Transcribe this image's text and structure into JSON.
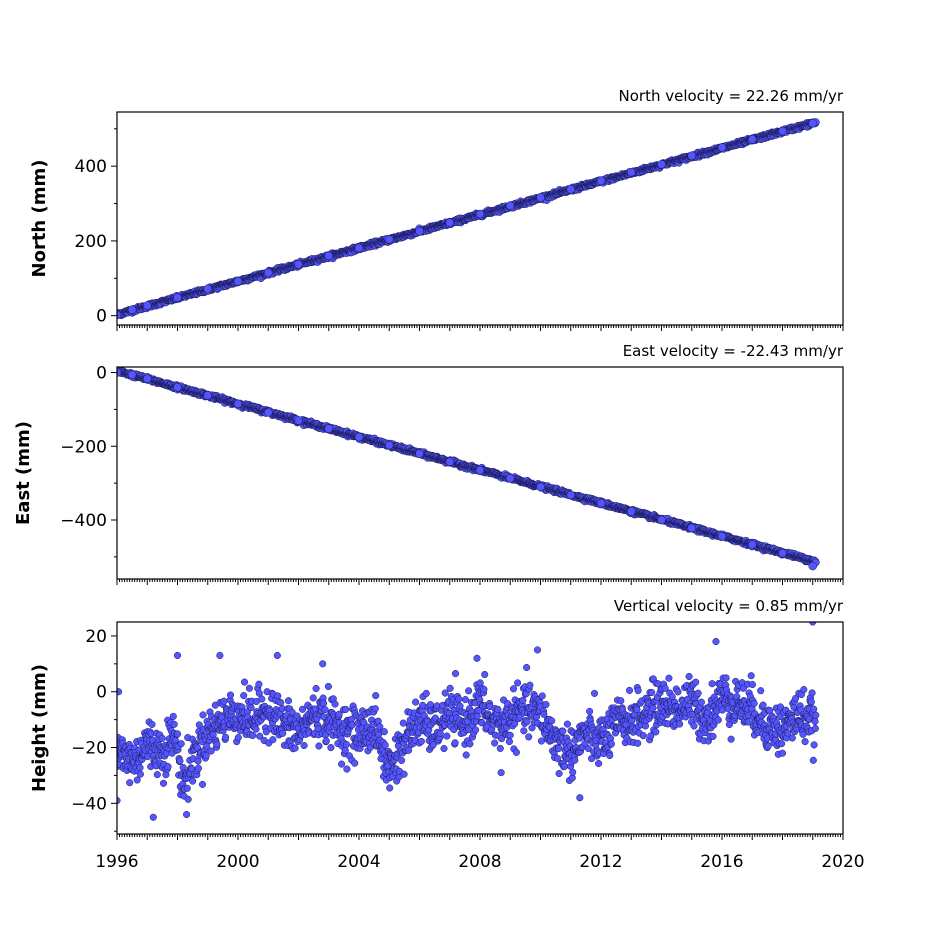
{
  "chart_data": [
    {
      "type": "scatter",
      "title": "North velocity = 22.26 mm/yr",
      "ylabel": "North (mm)",
      "xlim": [
        1996,
        2020
      ],
      "ylim": [
        -25,
        545
      ],
      "yticks": [
        0,
        200,
        400
      ],
      "ytick_labels": [
        "0",
        "200",
        "400"
      ],
      "velocity_mm_per_yr": 22.26,
      "intercept_mm": 3,
      "data_span": [
        1996.0,
        2019.1
      ],
      "noise_mm": 2.5,
      "color": "#5555ff",
      "points": [
        [
          1996.0,
          2
        ],
        [
          1996.5,
          16
        ],
        [
          1997.0,
          27
        ],
        [
          1998.0,
          48
        ],
        [
          1999.0,
          72
        ],
        [
          2000.0,
          92
        ],
        [
          2001.0,
          115
        ],
        [
          2002.0,
          137
        ],
        [
          2003.0,
          160
        ],
        [
          2004.0,
          181
        ],
        [
          2005.0,
          204
        ],
        [
          2006.0,
          226
        ],
        [
          2007.0,
          249
        ],
        [
          2008.0,
          272
        ],
        [
          2009.0,
          294
        ],
        [
          2010.0,
          316
        ],
        [
          2011.0,
          338
        ],
        [
          2012.0,
          361
        ],
        [
          2013.0,
          384
        ],
        [
          2014.0,
          405
        ],
        [
          2015.0,
          428
        ],
        [
          2016.0,
          450
        ],
        [
          2017.0,
          472
        ],
        [
          2018.0,
          494
        ],
        [
          2019.0,
          515
        ]
      ]
    },
    {
      "type": "scatter",
      "title": "East velocity = -22.43 mm/yr",
      "ylabel": "East (mm)",
      "xlim": [
        1996,
        2020
      ],
      "ylim": [
        -560,
        15
      ],
      "yticks": [
        0,
        -200,
        -400
      ],
      "ytick_labels": [
        "0",
        "−200",
        "−400"
      ],
      "velocity_mm_per_yr": -22.43,
      "intercept_mm": 5,
      "data_span": [
        1996.0,
        2019.1
      ],
      "noise_mm": 2.5,
      "color": "#5555ff",
      "points": [
        [
          1996.0,
          0
        ],
        [
          1996.5,
          -6
        ],
        [
          1997.0,
          -17
        ],
        [
          1998.0,
          -40
        ],
        [
          1999.0,
          -62
        ],
        [
          2000.0,
          -85
        ],
        [
          2001.0,
          -108
        ],
        [
          2002.0,
          -130
        ],
        [
          2003.0,
          -152
        ],
        [
          2004.0,
          -175
        ],
        [
          2005.0,
          -197
        ],
        [
          2006.0,
          -220
        ],
        [
          2007.0,
          -242
        ],
        [
          2008.0,
          -265
        ],
        [
          2009.0,
          -287
        ],
        [
          2010.0,
          -310
        ],
        [
          2011.0,
          -332
        ],
        [
          2012.0,
          -354
        ],
        [
          2013.0,
          -377
        ],
        [
          2014.0,
          -400
        ],
        [
          2015.0,
          -422
        ],
        [
          2016.0,
          -444
        ],
        [
          2017.0,
          -467
        ],
        [
          2018.0,
          -490
        ],
        [
          2019.0,
          -525
        ]
      ]
    },
    {
      "type": "scatter",
      "title": "Vertical velocity = 0.85 mm/yr",
      "ylabel": "Height (mm)",
      "xlim": [
        1996,
        2020
      ],
      "ylim": [
        -51,
        25
      ],
      "yticks": [
        20,
        0,
        -20,
        -40
      ],
      "ytick_labels": [
        "20",
        "0",
        "−20",
        "−40"
      ],
      "xticks": [
        1996,
        2000,
        2004,
        2008,
        2012,
        2016,
        2020
      ],
      "xtick_labels": [
        "1996",
        "2000",
        "2004",
        "2008",
        "2012",
        "2016",
        "2020"
      ],
      "velocity_mm_per_yr": 0.85,
      "data_span": [
        1996.0,
        2019.1
      ],
      "noise_mm": 4.5,
      "color": "#5555ff",
      "baseline": [
        [
          1996.0,
          -22
        ],
        [
          1996.6,
          -25
        ],
        [
          1997.0,
          -18
        ],
        [
          1997.5,
          -22
        ],
        [
          1997.9,
          -15
        ],
        [
          1998.2,
          -33
        ],
        [
          1998.6,
          -22
        ],
        [
          1999.0,
          -15
        ],
        [
          1999.5,
          -10
        ],
        [
          2000.0,
          -8
        ],
        [
          2000.5,
          -10
        ],
        [
          2001.0,
          -6
        ],
        [
          2001.5,
          -12
        ],
        [
          2002.0,
          -15
        ],
        [
          2002.5,
          -8
        ],
        [
          2003.0,
          -10
        ],
        [
          2003.5,
          -14
        ],
        [
          2004.0,
          -15
        ],
        [
          2004.5,
          -12
        ],
        [
          2005.0,
          -28
        ],
        [
          2005.4,
          -20
        ],
        [
          2006.0,
          -10
        ],
        [
          2006.5,
          -14
        ],
        [
          2007.0,
          -8
        ],
        [
          2007.5,
          -12
        ],
        [
          2008.0,
          -4
        ],
        [
          2008.5,
          -12
        ],
        [
          2009.0,
          -10
        ],
        [
          2009.5,
          -6
        ],
        [
          2010.0,
          -8
        ],
        [
          2010.5,
          -18
        ],
        [
          2011.0,
          -22
        ],
        [
          2011.5,
          -15
        ],
        [
          2012.0,
          -18
        ],
        [
          2012.5,
          -12
        ],
        [
          2013.0,
          -10
        ],
        [
          2013.5,
          -8
        ],
        [
          2014.0,
          -4
        ],
        [
          2014.5,
          -6
        ],
        [
          2015.0,
          -4
        ],
        [
          2015.5,
          -10
        ],
        [
          2016.0,
          -2
        ],
        [
          2016.5,
          -4
        ],
        [
          2017.0,
          -6
        ],
        [
          2017.5,
          -12
        ],
        [
          2018.0,
          -14
        ],
        [
          2018.5,
          -8
        ],
        [
          2019.0,
          -10
        ],
        [
          2019.1,
          -15
        ]
      ],
      "outliers": [
        [
          1996.05,
          0
        ],
        [
          1998.0,
          13
        ],
        [
          1999.4,
          13
        ],
        [
          2001.3,
          13
        ],
        [
          2002.8,
          10
        ],
        [
          2007.9,
          12
        ],
        [
          2009.9,
          15
        ],
        [
          2015.8,
          18
        ],
        [
          2019.0,
          25
        ],
        [
          1997.2,
          -45
        ],
        [
          1998.3,
          -44
        ],
        [
          2011.3,
          -38
        ],
        [
          2008.7,
          -29
        ],
        [
          1996.0,
          -39
        ]
      ]
    }
  ]
}
